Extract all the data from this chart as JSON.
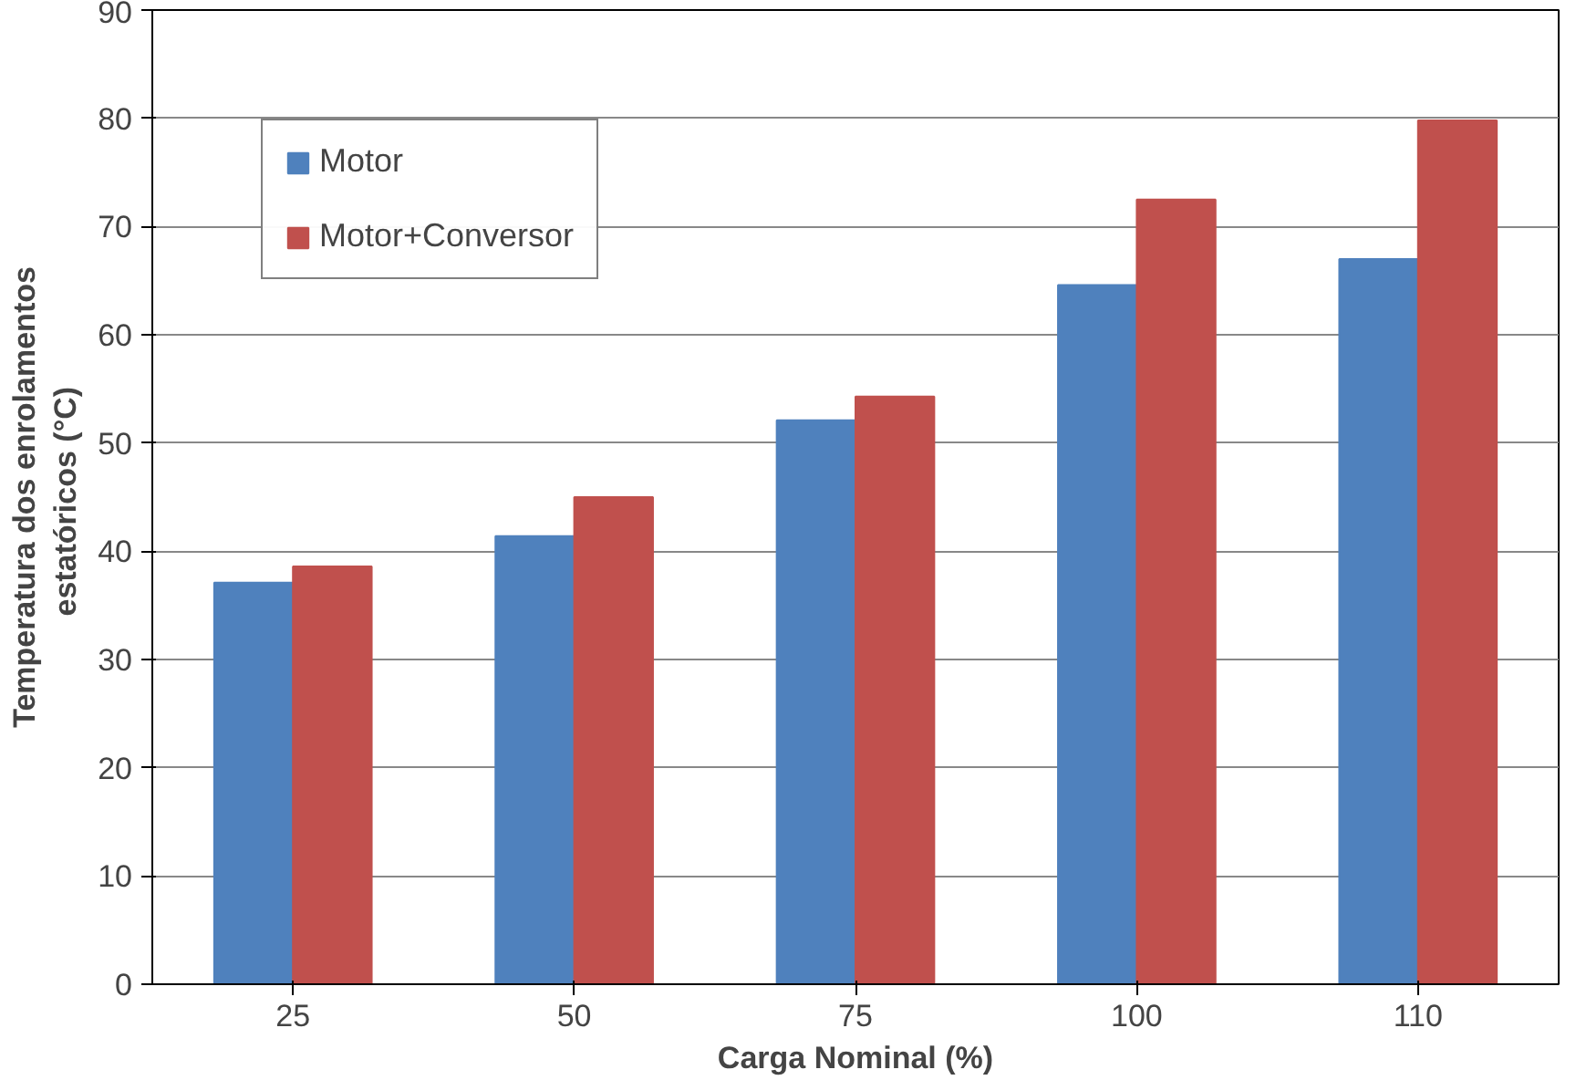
{
  "chart_data": {
    "type": "bar",
    "xlabel": "Carga Nominal (%)",
    "ylabel": "Temperatura dos enrolamentos\nestatóricos  (°C)",
    "categories": [
      "25",
      "50",
      "75",
      "100",
      "110"
    ],
    "series": [
      {
        "name": "Motor",
        "color": "#4f81bd",
        "values": [
          37.1,
          41.4,
          52.1,
          64.6,
          67.0
        ]
      },
      {
        "name": "Motor+Conversor",
        "color": "#c0504d",
        "values": [
          38.6,
          45.0,
          54.3,
          72.5,
          79.8
        ]
      }
    ],
    "ylim": [
      0,
      90
    ],
    "yticks": [
      0,
      10,
      20,
      30,
      40,
      50,
      60,
      70,
      80,
      90
    ],
    "grid": "y",
    "legend": "top left"
  }
}
